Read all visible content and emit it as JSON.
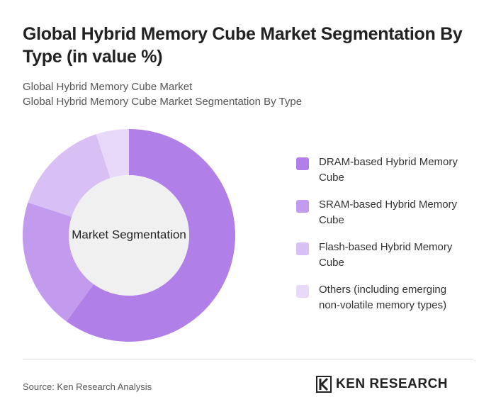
{
  "chart_data": {
    "type": "pie",
    "title": "Global Hybrid Memory Cube Market Segmentation By Type (in value %)",
    "subtitle": [
      "Global Hybrid Memory Cube Market",
      "Global Hybrid Memory Cube Market Segmentation By Type"
    ],
    "center_label": "Market Segmentation",
    "categories": [
      "DRAM-based Hybrid Memory Cube",
      "SRAM-based Hybrid Memory Cube",
      "Flash-based Hybrid Memory Cube",
      "Others (including emerging non-volatile memory types)"
    ],
    "values": [
      60,
      20,
      15,
      5
    ],
    "colors": [
      "#b07fe8",
      "#c39bee",
      "#d8bff4",
      "#e8d9f8"
    ],
    "source": "Source: Ken Research Analysis",
    "brand": "KEN RESEARCH"
  }
}
